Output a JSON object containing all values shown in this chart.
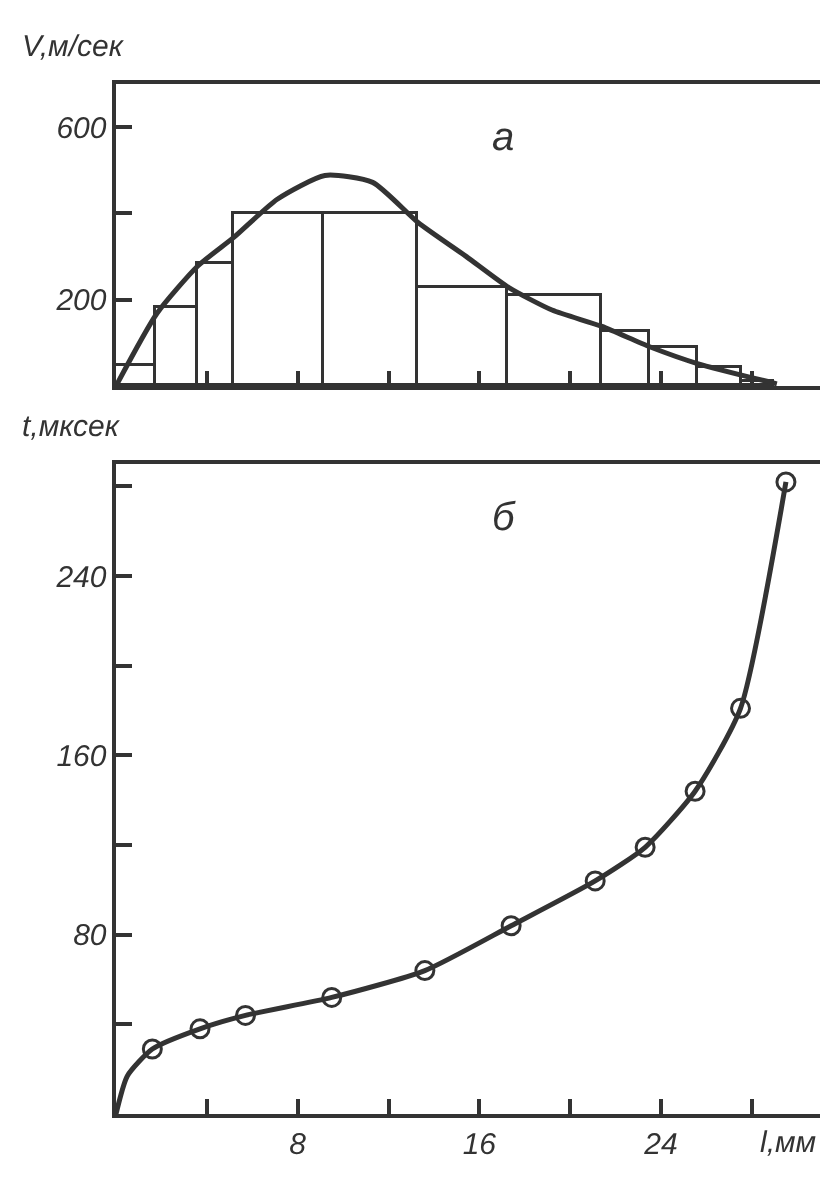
{
  "chart_data": [
    {
      "type": "histogram",
      "ylabel": "V,м/сек",
      "annotations": [
        "а"
      ],
      "bins": [
        0,
        1.8,
        3.6,
        5.2,
        9.2,
        13.3,
        17.3,
        21.4,
        23.5,
        25.6,
        27.6,
        29.0
      ],
      "values": [
        47,
        181,
        285,
        400,
        400,
        228,
        208,
        126,
        86,
        43,
        8
      ],
      "series": [
        {
          "type": "line",
          "color": "#333333",
          "x": [
            0,
            1.8,
            3.6,
            5.2,
            7.1,
            9.2,
            11.3,
            13.3,
            15.4,
            17.3,
            19.2,
            21.4,
            23.5,
            25.6,
            29.1
          ],
          "values": [
            0,
            168,
            278,
            345,
            433,
            488,
            472,
            379,
            301,
            228,
            176,
            138,
            91,
            52,
            5
          ]
        }
      ],
      "xlim": [
        0,
        31
      ],
      "xticks": [
        {
          "value": 4,
          "label": null
        },
        {
          "value": 8,
          "label": null
        },
        {
          "value": 12,
          "label": null
        },
        {
          "value": 16,
          "label": null
        },
        {
          "value": 20,
          "label": null
        },
        {
          "value": 24,
          "label": null
        },
        {
          "value": 28,
          "label": null
        }
      ],
      "ylim": [
        0,
        700
      ],
      "yticks": [
        200,
        {
          "value": 400,
          "label": null
        },
        600
      ],
      "tick_labels": "y"
    },
    {
      "type": "line",
      "xlabel": "l,мм",
      "ylabel": "t,мксек",
      "annotations": [
        "б"
      ],
      "series": [
        {
          "type": "line",
          "color": "#333333",
          "marker": "none",
          "x": [
            0,
            0.5,
            1.6,
            3.7,
            5.7,
            9.5,
            13.6,
            17.4,
            21.1,
            23.3,
            25.5,
            27.5,
            29.5
          ],
          "values": [
            0,
            17,
            29,
            38,
            44,
            52,
            64,
            84,
            104,
            119,
            144,
            181,
            282
          ]
        },
        {
          "type": "scatter",
          "color": "#333333",
          "marker": "circle",
          "x": [
            1.6,
            3.7,
            5.7,
            9.5,
            13.6,
            17.4,
            21.1,
            23.3,
            25.5,
            27.5,
            29.5
          ],
          "values": [
            29,
            38,
            44,
            52,
            64,
            84,
            104,
            119,
            144,
            181,
            282
          ]
        }
      ],
      "xlim": [
        0,
        31
      ],
      "xticks": [
        {
          "value": 4,
          "label": null
        },
        8,
        {
          "value": 12,
          "label": null
        },
        16,
        {
          "value": 20,
          "label": null
        },
        24,
        {
          "value": 28,
          "label": null
        }
      ],
      "ylim": [
        0,
        290
      ],
      "yticks": [
        {
          "value": 40,
          "label": null
        },
        80,
        {
          "value": 120,
          "label": null
        },
        160,
        {
          "value": 200,
          "label": null
        },
        240,
        {
          "value": 280,
          "label": null
        }
      ]
    }
  ]
}
